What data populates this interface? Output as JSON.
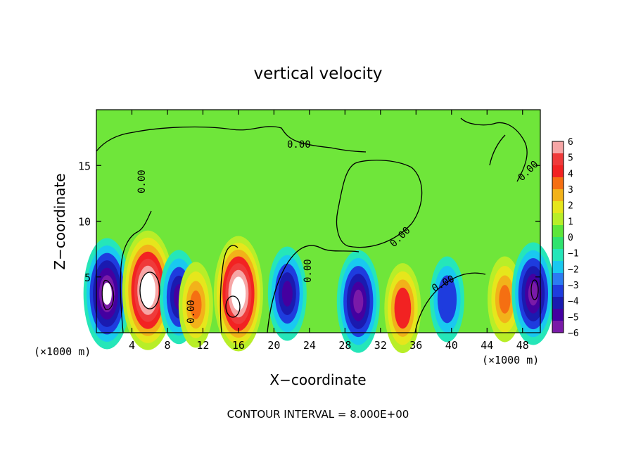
{
  "chart_data": {
    "type": "heatmap",
    "title": "vertical velocity",
    "xlabel": "X−coordinate",
    "ylabel": "Z−coordinate",
    "x_unit_left": "(×1000 m)",
    "x_unit_right": "(×1000 m)",
    "xlim": [
      0,
      50
    ],
    "ylim": [
      0,
      20
    ],
    "x_ticks": [
      "4",
      "8",
      "12",
      "16",
      "20",
      "24",
      "28",
      "32",
      "36",
      "40",
      "44",
      "48"
    ],
    "y_ticks": [
      "5",
      "10",
      "15"
    ],
    "colorbar": {
      "ticks": [
        "6",
        "5",
        "4",
        "3",
        "2",
        "1",
        "0",
        "−1",
        "−2",
        "−3",
        "−4",
        "−5",
        "−6"
      ],
      "range": [
        -6,
        6
      ],
      "colors": [
        "#f6a6a6",
        "#ef3a3a",
        "#f22222",
        "#f56f12",
        "#f2b21a",
        "#e6e61c",
        "#b8ee28",
        "#5de63a",
        "#2fe36f",
        "#25e6b9",
        "#19c9f0",
        "#2b7cf2",
        "#1e3cde",
        "#1a1ab0",
        "#4400a0",
        "#7a1aa8"
      ]
    },
    "contour_labels": [
      "0.00",
      "0.00",
      "0.00",
      "0.00",
      "0.00",
      "0.00",
      "0.00"
    ],
    "footer": "CONTOUR INTERVAL = 8.000E+00",
    "features": [
      {
        "x": 1.2,
        "z": 3.5,
        "w": -6.5
      },
      {
        "x": 5.8,
        "z": 3.8,
        "w": 7.5
      },
      {
        "x": 9.3,
        "z": 3.2,
        "w": -4.5
      },
      {
        "x": 11.2,
        "z": 2.5,
        "w": 3.5
      },
      {
        "x": 16.0,
        "z": 3.5,
        "w": 7.0
      },
      {
        "x": 21.5,
        "z": 3.5,
        "w": -4.5
      },
      {
        "x": 29.5,
        "z": 2.8,
        "w": -5.5
      },
      {
        "x": 34.5,
        "z": 2.2,
        "w": 4.0
      },
      {
        "x": 39.5,
        "z": 3.0,
        "w": -3.5
      },
      {
        "x": 46.0,
        "z": 3.0,
        "w": 3.5
      },
      {
        "x": 49.2,
        "z": 3.5,
        "w": -5.5
      }
    ]
  }
}
